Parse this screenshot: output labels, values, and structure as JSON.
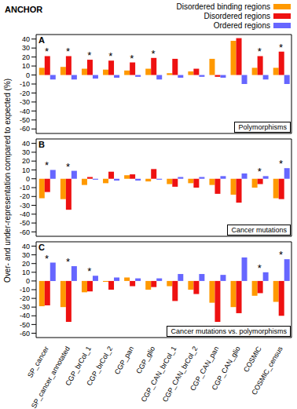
{
  "title": "ANCHOR",
  "y_label": "Over- and under-representation compared to expected (%)",
  "chart_data": [
    {
      "type": "bar",
      "panel": "A",
      "subtitle": "Polymorphisms",
      "legend": "top right",
      "grid": false,
      "tick_labels": "y",
      "annotation": "*",
      "categories": [
        "SP_cancer",
        "SP_cancer_annotated",
        "CGP_brCol_1",
        "CGP_brCol_2",
        "CGP_pan",
        "CGP_glio",
        "CGP_CAN_brCol_1",
        "CGP_CAN_brCol_2",
        "CGP_CAN_pan",
        "CGP_CAN_glio",
        "COSMIC",
        "COSMIC_census"
      ],
      "significant": [
        true,
        true,
        true,
        true,
        true,
        true,
        false,
        false,
        false,
        false,
        true,
        true
      ],
      "ylim": [
        -65,
        45
      ],
      "yticks": [
        -60,
        -50,
        -40,
        -30,
        -20,
        -10,
        0,
        10,
        20,
        30,
        40
      ],
      "series": [
        {
          "name": "Disordered binding regions",
          "color": "#ff9900",
          "values": [
            8,
            9,
            7,
            6,
            5,
            7,
            2,
            4,
            18,
            38,
            8,
            8
          ]
        },
        {
          "name": "Disordered regions",
          "color": "#ee1111",
          "values": [
            21,
            21,
            17,
            16,
            14,
            19,
            18,
            7,
            -2,
            41,
            21,
            26
          ]
        },
        {
          "name": "Ordered regions",
          "color": "#6666ff",
          "values": [
            -5,
            -5,
            -4,
            -3,
            -2,
            -5,
            -3,
            -2,
            -3,
            -10,
            -5,
            -10
          ]
        }
      ]
    },
    {
      "type": "bar",
      "panel": "B",
      "subtitle": "Cancer mutations",
      "grid": false,
      "tick_labels": "y",
      "annotation": "*",
      "categories": [
        "SP_cancer",
        "SP_cancer_annotated",
        "CGP_brCol_1",
        "CGP_brCol_2",
        "CGP_pan",
        "CGP_glio",
        "CGP_CAN_brCol_1",
        "CGP_CAN_brCol_2",
        "CGP_CAN_pan",
        "CGP_CAN_glio",
        "COSMIC",
        "COSMIC_census"
      ],
      "significant": [
        true,
        true,
        false,
        false,
        false,
        false,
        false,
        false,
        false,
        false,
        true,
        true
      ],
      "ylim": [
        -65,
        45
      ],
      "yticks": [
        -60,
        -50,
        -40,
        -30,
        -20,
        -10,
        0,
        10,
        20,
        30,
        40
      ],
      "series": [
        {
          "name": "Disordered binding regions",
          "color": "#ff9900",
          "values": [
            -22,
            -23,
            -7,
            -5,
            4,
            -3,
            -6,
            -5,
            -7,
            -18,
            -10,
            -22
          ]
        },
        {
          "name": "Disordered regions",
          "color": "#ee1111",
          "values": [
            -15,
            -35,
            2,
            8,
            5,
            11,
            -9,
            -10,
            -17,
            -27,
            -6,
            -23
          ]
        },
        {
          "name": "Ordered regions",
          "color": "#6666ff",
          "values": [
            10,
            9,
            -1,
            -2,
            -2,
            -1,
            2,
            2,
            3,
            6,
            3,
            12
          ]
        }
      ]
    },
    {
      "type": "bar",
      "panel": "C",
      "subtitle": "Cancer mutations vs. polymorphisms",
      "grid": false,
      "annotation": "*",
      "categories": [
        "SP_cancer",
        "SP_cancer_annotated",
        "CGP_brCol_1",
        "CGP_brCol_2",
        "CGP_pan",
        "CGP_glio",
        "CGP_CAN_brCol_1",
        "CGP_CAN_brCol_2",
        "CGP_CAN_pan",
        "CGP_CAN_glio",
        "COSMIC",
        "COSMIC_census"
      ],
      "significant": [
        true,
        true,
        true,
        false,
        false,
        false,
        false,
        false,
        false,
        false,
        true,
        true
      ],
      "ylim": [
        -65,
        45
      ],
      "yticks": [
        -60,
        -50,
        -40,
        -30,
        -20,
        -10,
        0,
        10,
        20,
        30,
        40
      ],
      "series": [
        {
          "name": "Disordered binding regions",
          "color": "#ff9900",
          "values": [
            -29,
            -30,
            -13,
            -1,
            4,
            -10,
            -6,
            -10,
            -25,
            -30,
            -17,
            -24
          ]
        },
        {
          "name": "Disordered regions",
          "color": "#ee1111",
          "values": [
            -28,
            -47,
            -12,
            -10,
            -6,
            -7,
            -23,
            -15,
            -47,
            -37,
            -14,
            -40
          ]
        },
        {
          "name": "Ordered regions",
          "color": "#6666ff",
          "values": [
            21,
            17,
            6,
            4,
            3,
            3,
            8,
            8,
            7,
            27,
            10,
            25
          ]
        }
      ]
    }
  ]
}
